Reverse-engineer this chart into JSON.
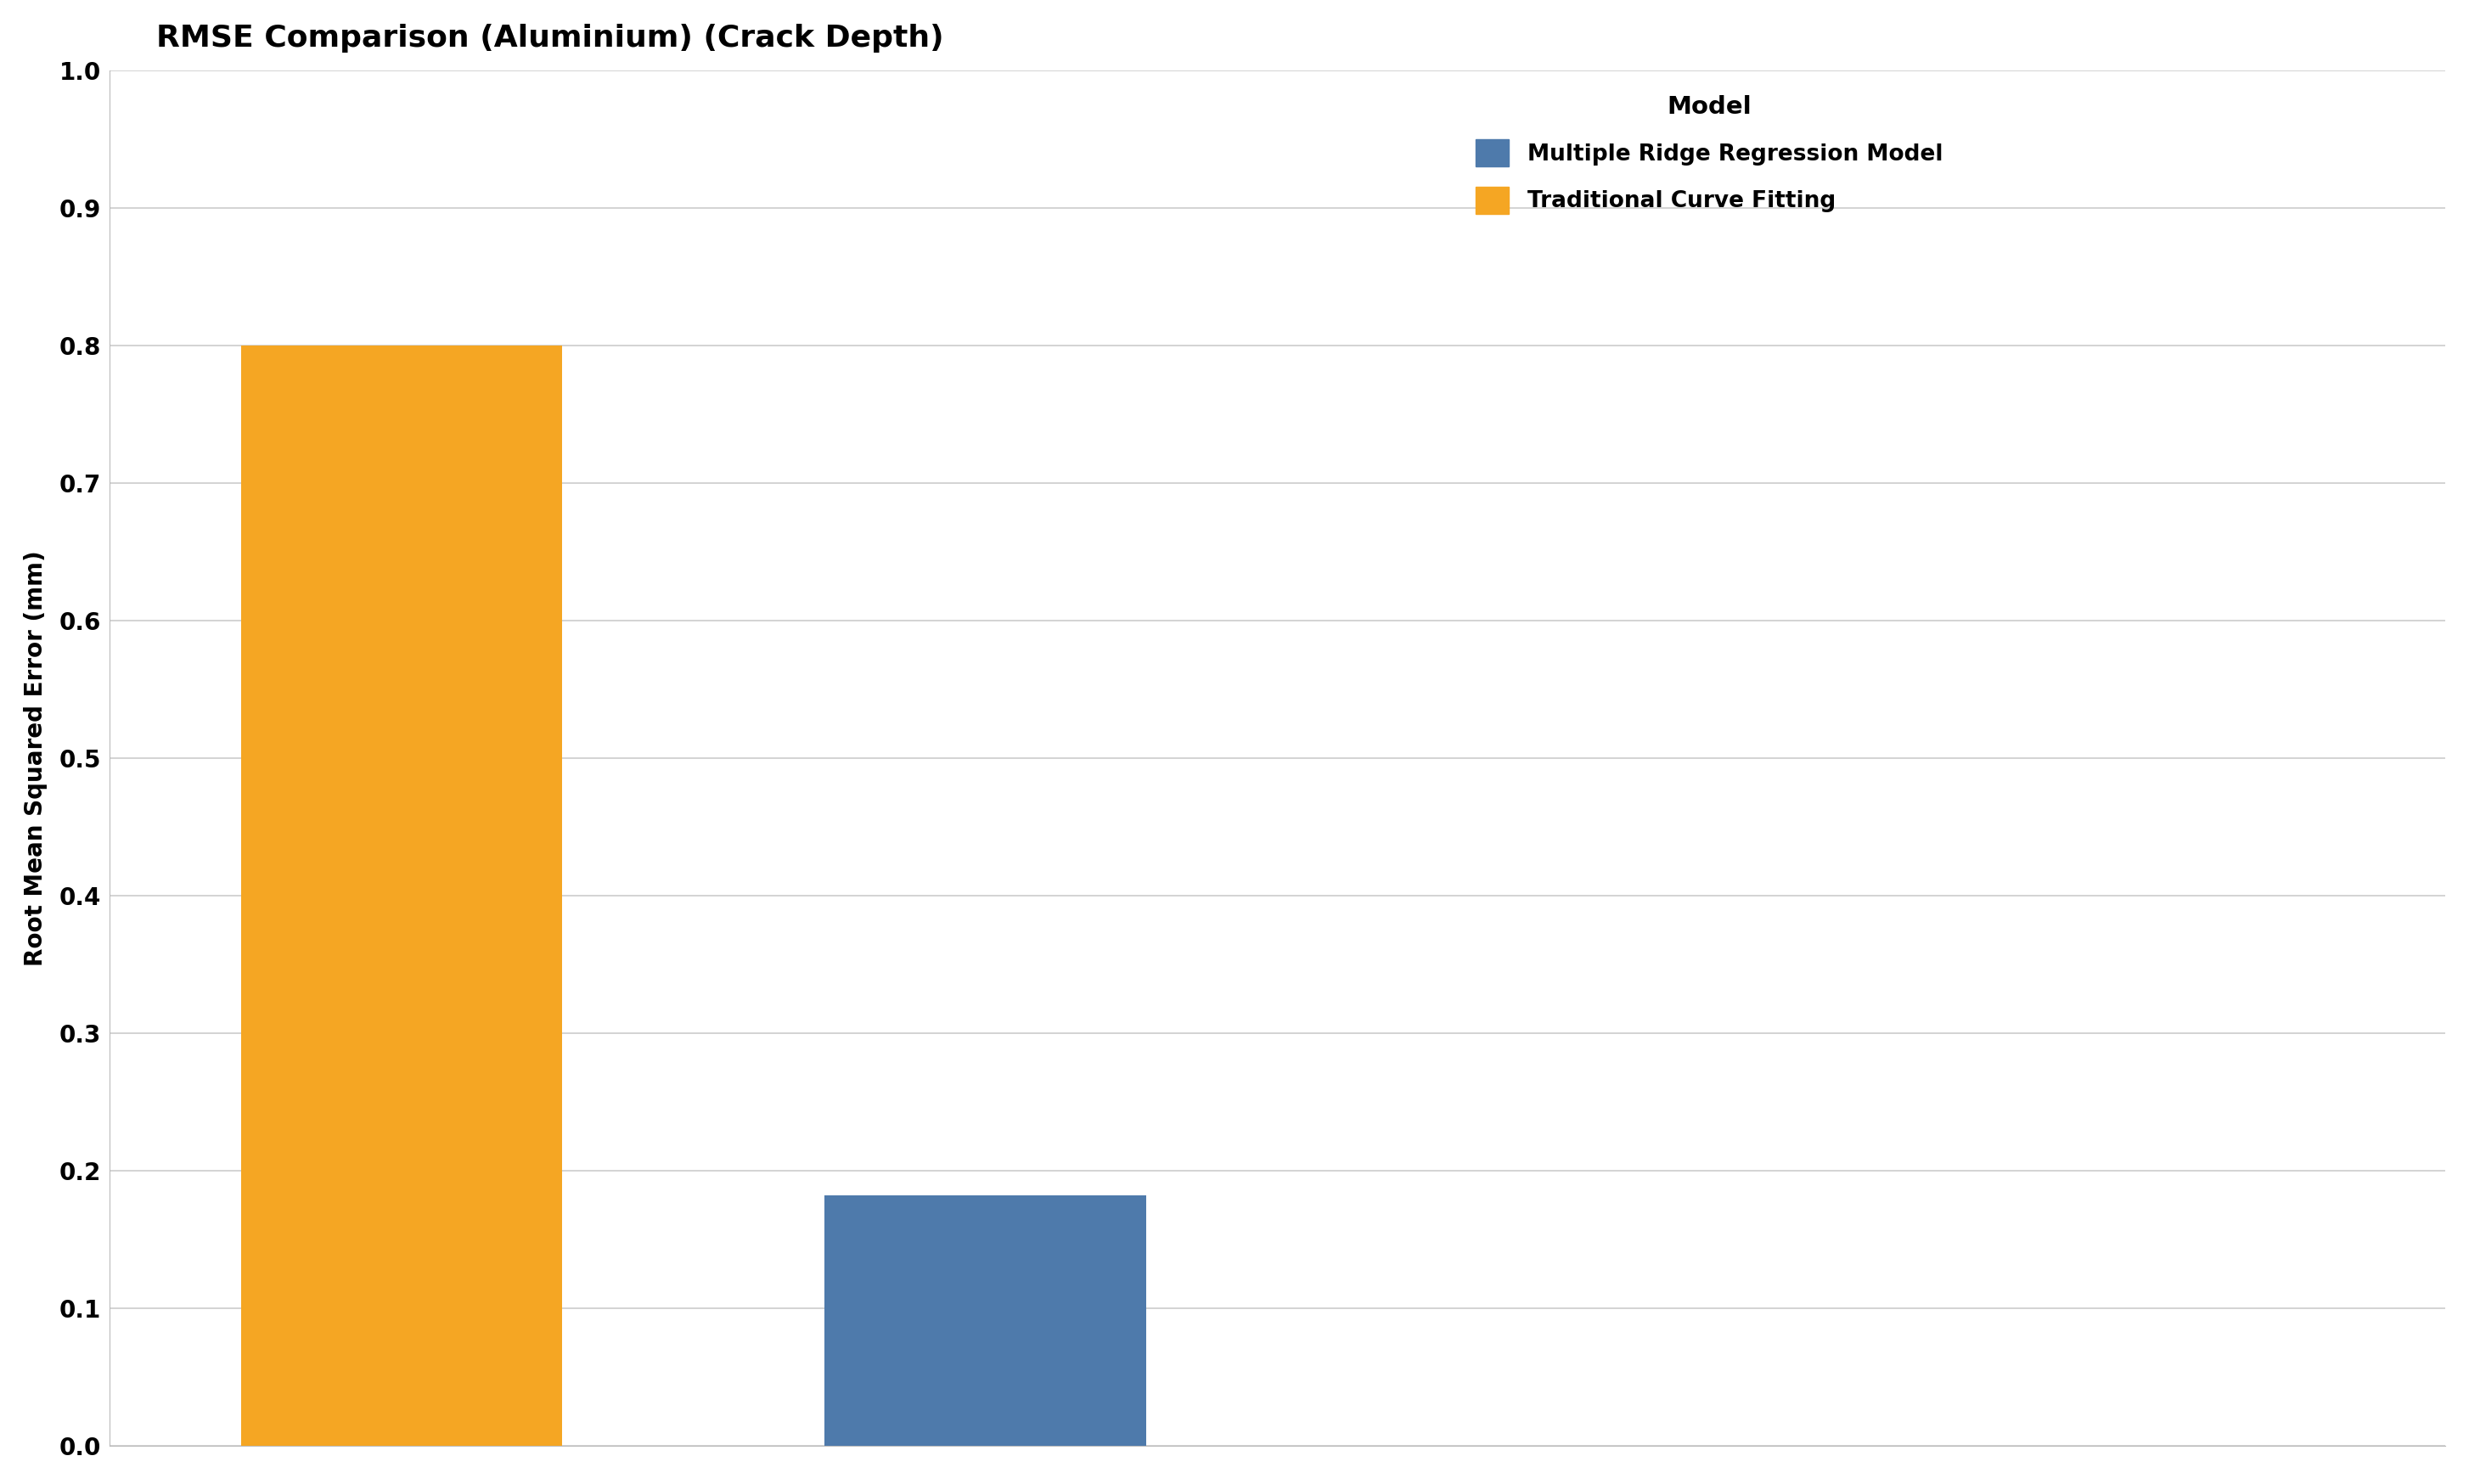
{
  "title": "RMSE Comparison (Aluminium) (Crack Depth)",
  "ylabel": "Root Mean Squared Error (mm)",
  "ylim": [
    0.0,
    1.0
  ],
  "yticks": [
    0.0,
    0.1,
    0.2,
    0.3,
    0.4,
    0.5,
    0.6,
    0.7,
    0.8,
    0.9,
    1.0
  ],
  "bars": [
    {
      "label": "Traditional Curve Fitting",
      "value": 0.8,
      "color": "#F5A623",
      "x": 0
    },
    {
      "label": "Multiple Ridge Regression Model",
      "value": 0.182,
      "color": "#4E7AAB",
      "x": 1
    }
  ],
  "legend_title": "Model",
  "legend_order": [
    "Multiple Ridge Regression Model",
    "Traditional Curve Fitting"
  ],
  "background_color": "#ffffff",
  "title_fontsize": 26,
  "axis_fontsize": 20,
  "tick_fontsize": 20,
  "legend_fontsize": 19,
  "bar_width": 0.55
}
